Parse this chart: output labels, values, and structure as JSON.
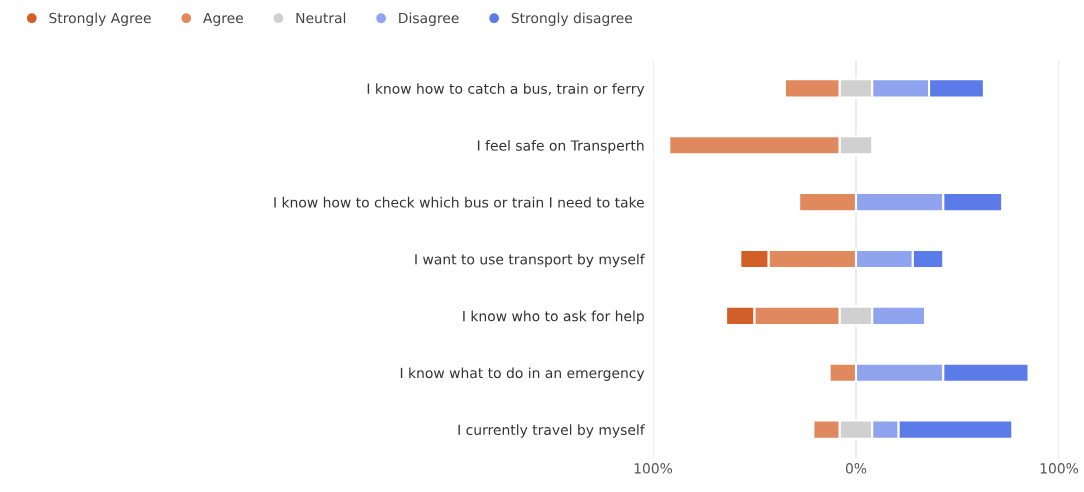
{
  "chart_data": {
    "type": "bar",
    "orientation": "horizontal",
    "categories": [
      "I know how to catch a bus, train or ferry",
      "I feel safe on Transperth",
      "I know how to check which bus or train I need to take",
      "I want to use transport by myself",
      "I know who to ask for help",
      "I know what to do in an emergency",
      "I currently travel by myself"
    ],
    "series": [
      {
        "name": "Strongly Agree",
        "color": "#d35f28",
        "values": [
          null,
          null,
          null,
          14,
          14,
          null,
          null
        ],
        "base": [
          null,
          null,
          null,
          -57,
          -64,
          null,
          null
        ]
      },
      {
        "name": "Agree",
        "color": "#e0895e",
        "values": [
          27,
          84,
          28,
          43,
          42,
          13,
          13
        ],
        "base": [
          -35,
          -92,
          -28,
          -43,
          -50,
          -13,
          -21
        ]
      },
      {
        "name": "Neutral",
        "color": "#d0d0d0",
        "values": [
          16,
          16,
          null,
          null,
          16,
          null,
          16
        ],
        "base": [
          -8,
          -8,
          null,
          null,
          -8,
          null,
          -8
        ]
      },
      {
        "name": "Disagree",
        "color": "#8fa3ef",
        "values": [
          28,
          null,
          43,
          28,
          26,
          43,
          13
        ],
        "base": [
          8,
          null,
          0,
          0,
          8,
          0,
          8
        ]
      },
      {
        "name": "Strongly disagree",
        "color": "#5b7be8",
        "values": [
          27,
          null,
          29,
          15,
          null,
          42,
          56
        ],
        "base": [
          36,
          null,
          43,
          28,
          null,
          43,
          21
        ]
      }
    ],
    "xlim": [
      -100,
      100
    ],
    "xticks": [
      {
        "value": -100,
        "label": "100%"
      },
      {
        "value": 0,
        "label": "0%"
      },
      {
        "value": 100,
        "label": "100%"
      }
    ],
    "grid": "x",
    "legend": "top left"
  }
}
